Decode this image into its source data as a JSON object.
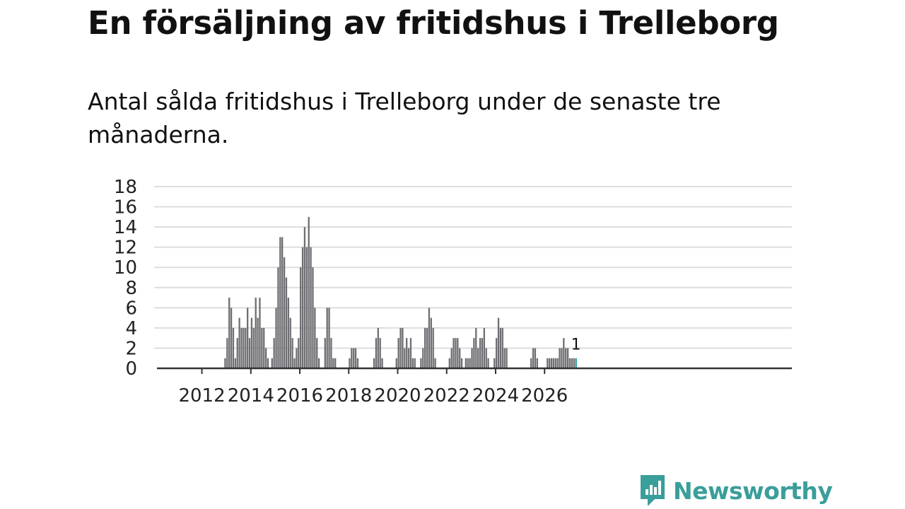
{
  "colors": {
    "bar": "#6e6e73",
    "highlight": "#1a9c9c",
    "grid": "#dddddd",
    "axis": "#333333",
    "brand": "#3a9e9a"
  },
  "brand": {
    "name": "Newsworthy",
    "icon": "chart-speech-bubble-icon"
  },
  "chart_data": {
    "type": "bar",
    "title": "En försäljning av fritidshus i Trelleborg",
    "subtitle": "Antal sålda fritidshus i Trelleborg under de senaste tre månaderna.",
    "xlabel": "",
    "ylabel": "",
    "ylim": [
      0,
      18
    ],
    "yticks": [
      0,
      2,
      4,
      6,
      8,
      10,
      12,
      14,
      16,
      18
    ],
    "xticks": [
      "2012",
      "2014",
      "2016",
      "2018",
      "2020",
      "2022",
      "2024",
      "2026"
    ],
    "grid": true,
    "start_month": "2011-09",
    "highlight_label": "1",
    "series": [
      {
        "values": [
          0,
          0,
          0,
          0,
          0,
          0,
          0,
          0,
          0,
          0,
          0,
          0,
          0,
          0,
          0,
          1,
          3,
          7,
          6,
          4,
          1,
          3,
          5,
          4,
          4,
          4,
          6,
          3,
          5,
          4,
          7,
          5,
          7,
          4,
          4,
          2,
          1,
          0,
          1,
          3,
          6,
          10,
          13,
          13,
          11,
          9,
          7,
          5,
          3,
          1,
          2,
          3,
          10,
          12,
          14,
          12,
          15,
          12,
          10,
          6,
          3,
          1,
          0,
          0,
          3,
          6,
          6,
          3,
          1,
          1,
          0,
          0,
          0,
          0,
          0,
          0,
          1,
          2,
          2,
          2,
          1,
          0,
          0,
          0,
          0,
          0,
          0,
          0,
          1,
          3,
          4,
          3,
          1,
          0,
          0,
          0,
          0,
          0,
          0,
          1,
          3,
          4,
          4,
          2,
          3,
          2,
          3,
          1,
          1,
          0,
          0,
          1,
          2,
          4,
          4,
          6,
          5,
          4,
          1,
          0,
          0,
          0,
          0,
          0,
          0,
          1,
          2,
          3,
          3,
          3,
          2,
          1,
          0,
          1,
          1,
          1,
          2,
          3,
          4,
          2,
          3,
          3,
          4,
          2,
          1,
          0,
          0,
          1,
          3,
          5,
          4,
          4,
          2,
          2,
          0,
          0,
          0,
          0,
          0,
          0,
          0,
          0,
          0,
          0,
          0,
          1,
          2,
          2,
          1,
          0,
          0,
          0,
          0,
          1,
          1,
          1,
          1,
          1,
          1,
          2,
          2,
          3,
          2,
          2,
          1,
          1,
          1,
          1
        ]
      }
    ]
  }
}
